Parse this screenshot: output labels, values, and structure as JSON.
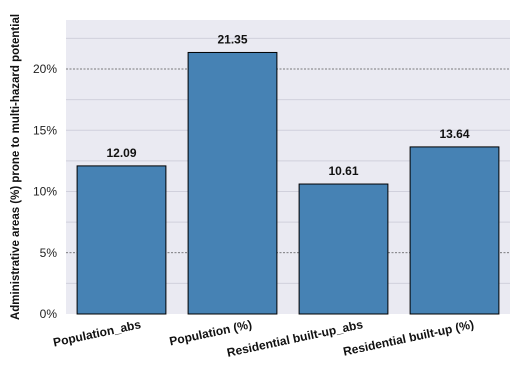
{
  "chart_data": {
    "type": "bar",
    "categories": [
      "Population_abs",
      "Population (%)",
      "Residential built-up_abs",
      "Residential built-up (%)"
    ],
    "values": [
      12.09,
      21.35,
      10.61,
      13.64
    ],
    "value_labels": [
      "12.09",
      "21.35",
      "10.61",
      "13.64"
    ],
    "title": "",
    "xlabel": "",
    "ylabel": "Administrative areas (%) prone to multi-hazard potential",
    "ylim": [
      0,
      24
    ],
    "yticks": [
      0,
      5,
      10,
      15,
      20
    ],
    "ytick_labels": [
      "0%",
      "5%",
      "10%",
      "15%",
      "20%"
    ],
    "grid": true,
    "colors": {
      "bar_fill": "#4682b4",
      "bar_edge": "#000000",
      "plot_background": "#eaeaf2",
      "grid_major": "#555555",
      "grid_minor": "#d0d0dc"
    }
  }
}
